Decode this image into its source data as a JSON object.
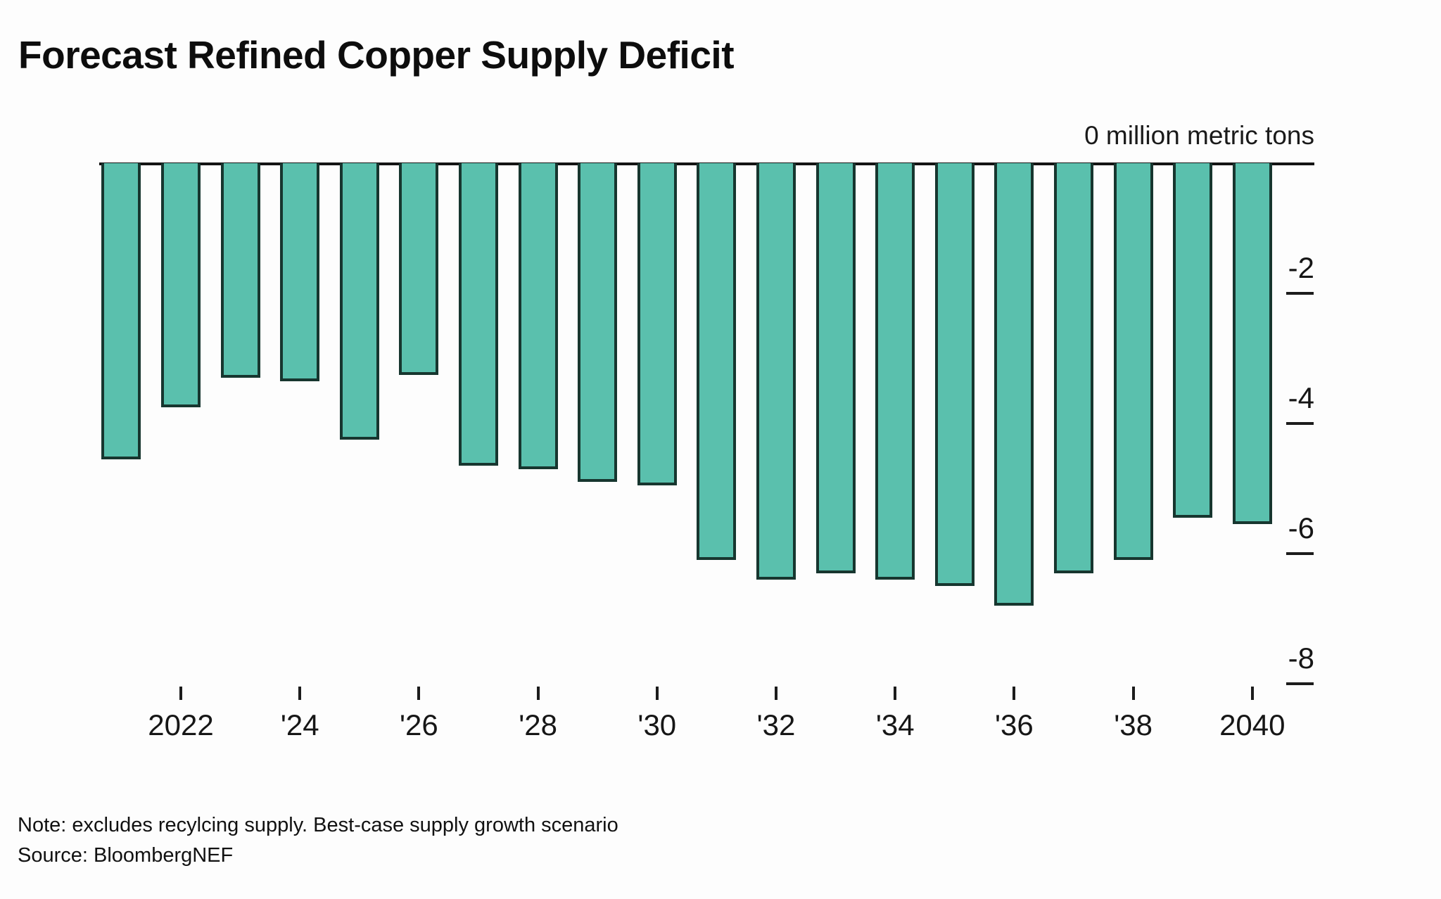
{
  "chart_data": {
    "type": "bar",
    "title": "Forecast Refined Copper Supply Deficit",
    "unit_label": "0 million metric tons",
    "ylabel": "million metric tons",
    "xlabel": "",
    "ylim": [
      -8.8,
      0
    ],
    "grid": false,
    "legend": null,
    "bar_color": "#5ac0ad",
    "bar_border_color": "#17362f",
    "categories": [
      2021,
      2022,
      2023,
      2024,
      2025,
      2026,
      2027,
      2028,
      2029,
      2030,
      2031,
      2032,
      2033,
      2034,
      2035,
      2036,
      2037,
      2038,
      2039,
      2040
    ],
    "values": [
      -4.55,
      -3.75,
      -3.3,
      -3.35,
      -4.25,
      -3.25,
      -4.65,
      -4.7,
      -4.9,
      -4.95,
      -6.1,
      -6.4,
      -6.3,
      -6.4,
      -6.5,
      -6.8,
      -6.3,
      -6.1,
      -5.45,
      -5.55
    ],
    "y_ticks": [
      {
        "label": "-2",
        "value": -2
      },
      {
        "label": "-4",
        "value": -4
      },
      {
        "label": "-6",
        "value": -6
      },
      {
        "label": "-8",
        "value": -8
      }
    ],
    "x_ticks": [
      {
        "label": "2022",
        "year": 2022
      },
      {
        "label": "'24",
        "year": 2024
      },
      {
        "label": "'26",
        "year": 2026
      },
      {
        "label": "'28",
        "year": 2028
      },
      {
        "label": "'30",
        "year": 2030
      },
      {
        "label": "'32",
        "year": 2032
      },
      {
        "label": "'34",
        "year": 2034
      },
      {
        "label": "'36",
        "year": 2036
      },
      {
        "label": "'38",
        "year": 2038
      },
      {
        "label": "2040",
        "year": 2040
      }
    ],
    "note": "Note: excludes recylcing supply. Best-case supply growth scenario",
    "source": "Source: BloombergNEF"
  }
}
